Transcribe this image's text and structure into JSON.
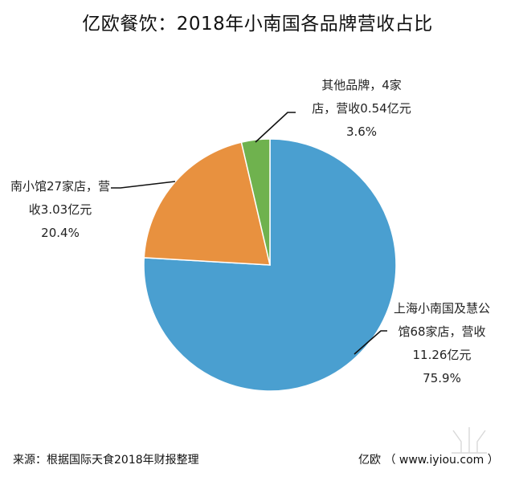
{
  "header": {
    "title": "亿欧餐饮：2018年小南国各品牌营收占比"
  },
  "chart_data": {
    "type": "pie",
    "title": "亿欧餐饮：2018年小南国各品牌营收占比",
    "slices": [
      {
        "label_lines": [
          "上海小南国及慧公",
          "馆68家店，营收",
          "11.26亿元"
        ],
        "value": 11.26,
        "percent_label": "75.9%",
        "color": "#4a9fd0"
      },
      {
        "label_lines": [
          "南小馆27家店，营",
          "收3.03亿元"
        ],
        "value": 3.03,
        "percent_label": "20.4%",
        "color": "#e8913f"
      },
      {
        "label_lines": [
          "其他品牌，4家",
          "店，营收0.54亿元"
        ],
        "value": 0.54,
        "percent_label": "3.6%",
        "color": "#6fb24e"
      }
    ],
    "start_angle_deg": 0,
    "direction": "clockwise"
  },
  "footer": {
    "source": "来源：根据国际天食2018年财报整理",
    "brand": "亿欧 （ www.iyiou.com ）"
  }
}
